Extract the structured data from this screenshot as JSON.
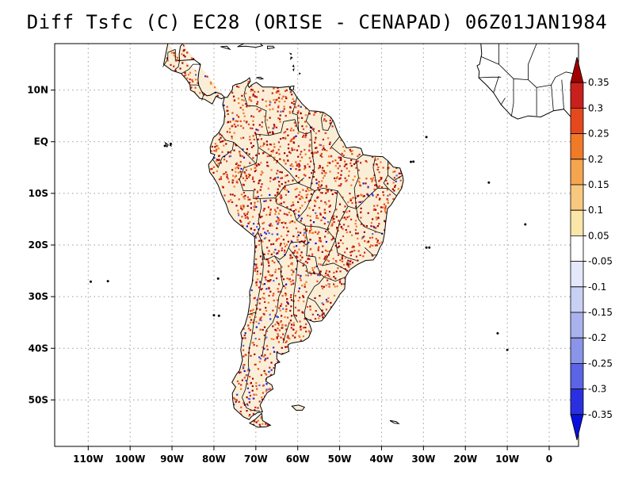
{
  "title": "Diff Tsfc (C) EC28 (ORISE - CENAPAD) 06Z01JAN1984",
  "map": {
    "type": "map",
    "lon_range": [
      -118,
      7
    ],
    "lat_range": [
      -59,
      19
    ],
    "grid": true,
    "lon_ticks": [
      {
        "lon": -110,
        "label": "110W"
      },
      {
        "lon": -100,
        "label": "100W"
      },
      {
        "lon": -90,
        "label": "90W"
      },
      {
        "lon": -80,
        "label": "80W"
      },
      {
        "lon": -70,
        "label": "70W"
      },
      {
        "lon": -60,
        "label": "60W"
      },
      {
        "lon": -50,
        "label": "50W"
      },
      {
        "lon": -40,
        "label": "40W"
      },
      {
        "lon": -30,
        "label": "30W"
      },
      {
        "lon": -20,
        "label": "20W"
      },
      {
        "lon": -10,
        "label": "10W"
      },
      {
        "lon": 0,
        "label": "0"
      }
    ],
    "lat_ticks": [
      {
        "lat": 10,
        "label": "10N"
      },
      {
        "lat": 0,
        "label": "EQ"
      },
      {
        "lat": -10,
        "label": "10S"
      },
      {
        "lat": -20,
        "label": "20S"
      },
      {
        "lat": -30,
        "label": "30S"
      },
      {
        "lat": -40,
        "label": "40S"
      },
      {
        "lat": -50,
        "label": "50S"
      }
    ],
    "land_color": "#ffffff",
    "outline_color": "#000000"
  },
  "colorbar": {
    "position": "right",
    "labels": [
      "0.35",
      "0.3",
      "0.25",
      "0.2",
      "0.15",
      "0.1",
      "0.05",
      "-0.05",
      "-0.1",
      "-0.15",
      "-0.2",
      "-0.25",
      "-0.3",
      "-0.35"
    ],
    "colors": [
      "#a00000",
      "#c8201c",
      "#e6481e",
      "#f07a28",
      "#f5a550",
      "#f8c880",
      "#fbe6a8",
      "#ffffff",
      "#e4e8fa",
      "#c8d0f4",
      "#aab2ee",
      "#8a94e8",
      "#5a64e4",
      "#2a30e0",
      "#0a10dc"
    ]
  },
  "dots": {
    "warm_colors": [
      "#c8201c",
      "#e6481e",
      "#f07a28",
      "#a00000"
    ],
    "cool_colors": [
      "#2a30e0",
      "#0a10dc",
      "#5a64e4"
    ]
  }
}
